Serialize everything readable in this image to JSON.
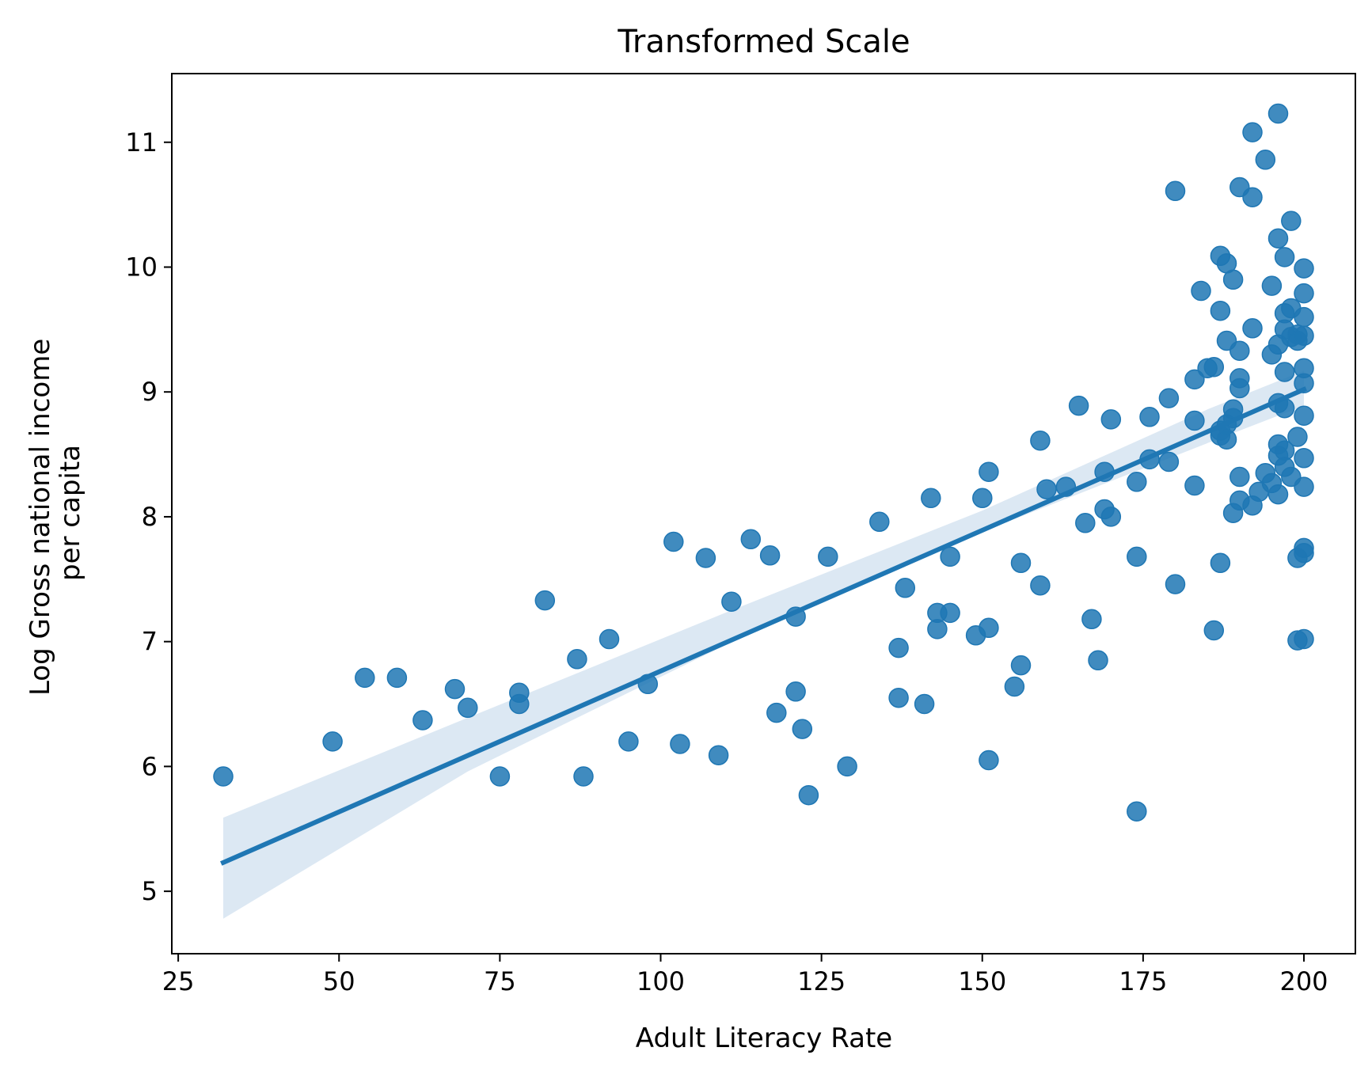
{
  "chart_data": {
    "type": "scatter",
    "title": "Transformed Scale",
    "xlabel": "Adult Literacy Rate",
    "ylabel": [
      "Log Gross national income",
      "per capita"
    ],
    "xlim": [
      24,
      208
    ],
    "ylim": [
      4.5,
      11.55
    ],
    "xticks": [
      25,
      50,
      75,
      100,
      125,
      150,
      175,
      200
    ],
    "yticks": [
      5,
      6,
      7,
      8,
      9,
      10,
      11
    ],
    "grid": false,
    "colors": {
      "point": "#1f77b4",
      "line": "#1f77b4",
      "band": "#dce8f3"
    },
    "regression": {
      "x": [
        32,
        200
      ],
      "y": [
        5.23,
        9.02
      ],
      "ci_x": [
        32,
        70,
        110,
        150,
        185,
        200
      ],
      "ci_lower": [
        4.78,
        5.96,
        6.97,
        7.88,
        8.59,
        8.89
      ],
      "ci_upper": [
        5.59,
        6.39,
        7.23,
        8.05,
        8.86,
        9.17
      ]
    },
    "points": [
      [
        32,
        5.92
      ],
      [
        49,
        6.2
      ],
      [
        54,
        6.71
      ],
      [
        59,
        6.71
      ],
      [
        63,
        6.37
      ],
      [
        68,
        6.62
      ],
      [
        70,
        6.47
      ],
      [
        75,
        5.92
      ],
      [
        78,
        6.59
      ],
      [
        78,
        6.5
      ],
      [
        82,
        7.33
      ],
      [
        87,
        6.86
      ],
      [
        88,
        5.92
      ],
      [
        92,
        7.02
      ],
      [
        95,
        6.2
      ],
      [
        98,
        6.66
      ],
      [
        102,
        7.8
      ],
      [
        103,
        6.18
      ],
      [
        107,
        7.67
      ],
      [
        109,
        6.09
      ],
      [
        111,
        7.32
      ],
      [
        114,
        7.82
      ],
      [
        117,
        7.69
      ],
      [
        118,
        6.43
      ],
      [
        121,
        7.2
      ],
      [
        121,
        6.6
      ],
      [
        122,
        6.3
      ],
      [
        123,
        5.77
      ],
      [
        126,
        7.68
      ],
      [
        129,
        6.0
      ],
      [
        134,
        7.96
      ],
      [
        137,
        6.95
      ],
      [
        137,
        6.55
      ],
      [
        138,
        7.43
      ],
      [
        141,
        6.5
      ],
      [
        142,
        8.15
      ],
      [
        143,
        7.23
      ],
      [
        143,
        7.1
      ],
      [
        145,
        7.68
      ],
      [
        145,
        7.23
      ],
      [
        149,
        7.05
      ],
      [
        150,
        8.15
      ],
      [
        151,
        8.36
      ],
      [
        151,
        7.11
      ],
      [
        151,
        6.05
      ],
      [
        155,
        6.64
      ],
      [
        156,
        7.63
      ],
      [
        156,
        6.81
      ],
      [
        159,
        8.61
      ],
      [
        159,
        7.45
      ],
      [
        160,
        8.22
      ],
      [
        163,
        8.24
      ],
      [
        165,
        8.89
      ],
      [
        166,
        7.95
      ],
      [
        167,
        7.18
      ],
      [
        168,
        6.85
      ],
      [
        169,
        8.36
      ],
      [
        169,
        8.06
      ],
      [
        170,
        8.78
      ],
      [
        170,
        8.0
      ],
      [
        174,
        8.28
      ],
      [
        174,
        7.68
      ],
      [
        174,
        5.64
      ],
      [
        176,
        8.8
      ],
      [
        176,
        8.46
      ],
      [
        179,
        8.95
      ],
      [
        179,
        8.44
      ],
      [
        180,
        10.61
      ],
      [
        180,
        7.46
      ],
      [
        183,
        9.1
      ],
      [
        183,
        8.77
      ],
      [
        183,
        8.25
      ],
      [
        184,
        9.81
      ],
      [
        185,
        9.19
      ],
      [
        186,
        9.2
      ],
      [
        186,
        7.09
      ],
      [
        187,
        10.09
      ],
      [
        187,
        9.65
      ],
      [
        187,
        8.69
      ],
      [
        187,
        8.65
      ],
      [
        187,
        7.63
      ],
      [
        188,
        10.03
      ],
      [
        188,
        9.41
      ],
      [
        188,
        8.74
      ],
      [
        188,
        8.62
      ],
      [
        189,
        9.9
      ],
      [
        189,
        8.86
      ],
      [
        189,
        8.79
      ],
      [
        189,
        8.03
      ],
      [
        190,
        10.64
      ],
      [
        190,
        9.33
      ],
      [
        190,
        9.11
      ],
      [
        190,
        9.03
      ],
      [
        190,
        8.32
      ],
      [
        190,
        8.13
      ],
      [
        192,
        11.08
      ],
      [
        192,
        10.56
      ],
      [
        192,
        9.51
      ],
      [
        192,
        8.09
      ],
      [
        193,
        8.2
      ],
      [
        194,
        10.86
      ],
      [
        194,
        8.35
      ],
      [
        195,
        9.85
      ],
      [
        195,
        9.3
      ],
      [
        195,
        8.27
      ],
      [
        196,
        11.23
      ],
      [
        196,
        10.23
      ],
      [
        196,
        9.38
      ],
      [
        196,
        8.91
      ],
      [
        196,
        8.58
      ],
      [
        196,
        8.49
      ],
      [
        196,
        8.18
      ],
      [
        197,
        10.08
      ],
      [
        197,
        9.63
      ],
      [
        197,
        9.5
      ],
      [
        197,
        9.16
      ],
      [
        197,
        8.87
      ],
      [
        197,
        8.53
      ],
      [
        197,
        8.4
      ],
      [
        198,
        10.37
      ],
      [
        198,
        9.67
      ],
      [
        198,
        9.44
      ],
      [
        198,
        8.32
      ],
      [
        199,
        9.46
      ],
      [
        199,
        9.41
      ],
      [
        199,
        8.64
      ],
      [
        199,
        7.67
      ],
      [
        199,
        7.01
      ],
      [
        200,
        9.99
      ],
      [
        200,
        9.79
      ],
      [
        200,
        9.6
      ],
      [
        200,
        9.45
      ],
      [
        200,
        9.19
      ],
      [
        200,
        9.07
      ],
      [
        200,
        8.81
      ],
      [
        200,
        8.47
      ],
      [
        200,
        8.24
      ],
      [
        200,
        7.75
      ],
      [
        200,
        7.71
      ],
      [
        200,
        7.02
      ]
    ]
  }
}
